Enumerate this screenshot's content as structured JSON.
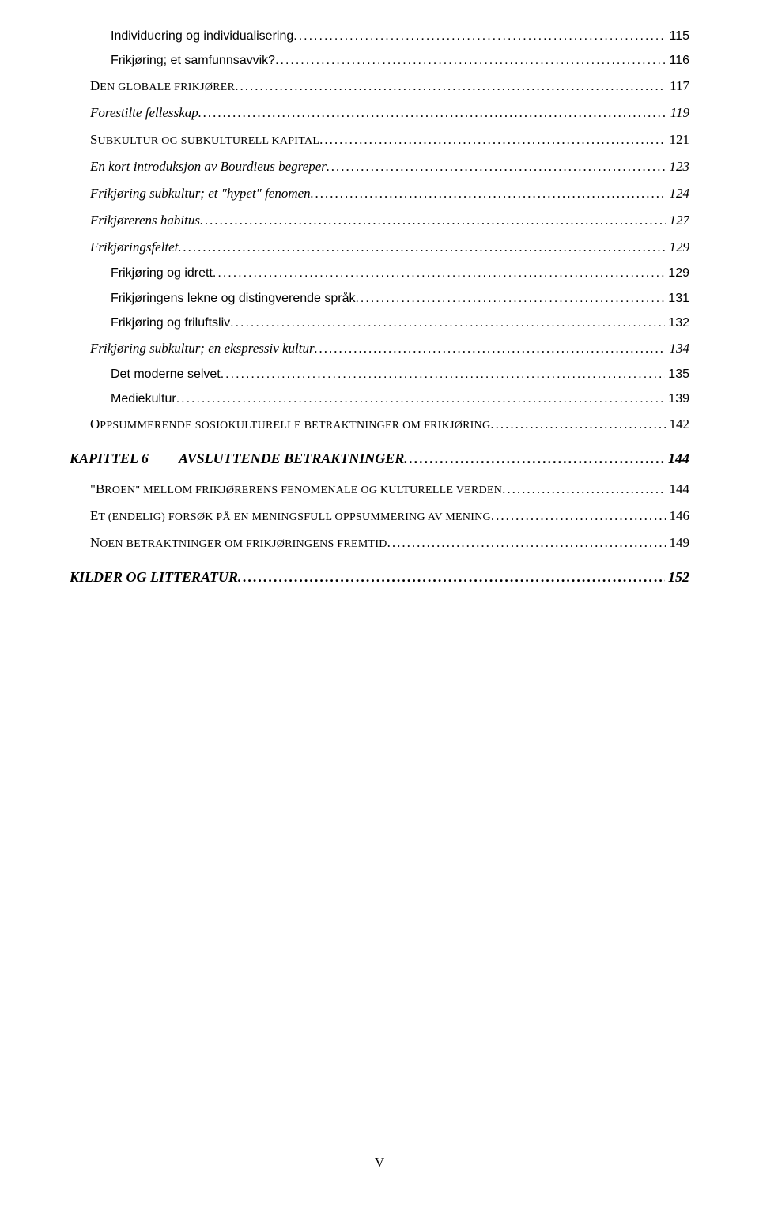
{
  "toc": {
    "items": [
      {
        "level": "sub3",
        "text": "Individuering og individualisering",
        "page": "115"
      },
      {
        "level": "sub3",
        "text": "Frikjøring; et samfunnsavvik?",
        "page": "116"
      },
      {
        "level": "sub1-sc",
        "sc_first": "D",
        "sc_rest": "EN GLOBALE FRIKJØRER",
        "page": "117"
      },
      {
        "level": "sub2-italic",
        "text": "Forestilte fellesskap",
        "page": "119"
      },
      {
        "level": "sub1-sc",
        "sc_first": "S",
        "sc_rest": "UBKULTUR OG SUBKULTURELL KAPITAL",
        "page": "121"
      },
      {
        "level": "sub2-italic",
        "text": "En kort introduksjon av Bourdieus begreper",
        "page": "123"
      },
      {
        "level": "sub2-italic",
        "text": "Frikjøring subkultur; et \"hypet\" fenomen",
        "page": "124"
      },
      {
        "level": "sub2-italic",
        "text": "Frikjørerens habitus",
        "page": "127"
      },
      {
        "level": "sub2-italic",
        "text": "Frikjøringsfeltet",
        "page": "129"
      },
      {
        "level": "sub3",
        "text": "Frikjøring og idrett",
        "page": "129"
      },
      {
        "level": "sub3",
        "text": "Frikjøringens lekne og distingverende språk",
        "page": "131"
      },
      {
        "level": "sub3",
        "text": "Frikjøring og friluftsliv",
        "page": "132"
      },
      {
        "level": "sub2-italic",
        "text": "Frikjøring subkultur; en ekspressiv kultur",
        "page": "134"
      },
      {
        "level": "sub3",
        "text": "Det moderne selvet",
        "page": "135"
      },
      {
        "level": "sub3",
        "text": "Mediekultur",
        "page": "139"
      },
      {
        "level": "sub1-sc",
        "sc_first": "O",
        "sc_rest": "PPSUMMERENDE SOSIOKULTURELLE BETRAKTNINGER OM FRIKJØRING",
        "page": "142"
      },
      {
        "level": "chapter",
        "prefix": "KAPITTEL 6",
        "text": "AVSLUTTENDE BETRAKTNINGER",
        "page": "144"
      },
      {
        "level": "sub1-sc-quote",
        "sc_first": "\"B",
        "sc_rest": "ROEN\" MELLOM FRIKJØRERENS FENOMENALE OG KULTURELLE VERDEN",
        "page": "144"
      },
      {
        "level": "sub1-sc",
        "sc_first": "E",
        "sc_rest": "T (ENDELIG) FORSØK PÅ EN MENINGSFULL OPPSUMMERING AV MENING",
        "page": "146"
      },
      {
        "level": "sub1-sc",
        "sc_first": "N",
        "sc_rest": "OEN BETRAKTNINGER OM FRIKJØRINGENS FREMTID",
        "page": "149"
      },
      {
        "level": "chapter-plain",
        "text": "KILDER OG LITTERATUR",
        "page": "152"
      }
    ]
  },
  "footer": {
    "page_number": "V"
  }
}
